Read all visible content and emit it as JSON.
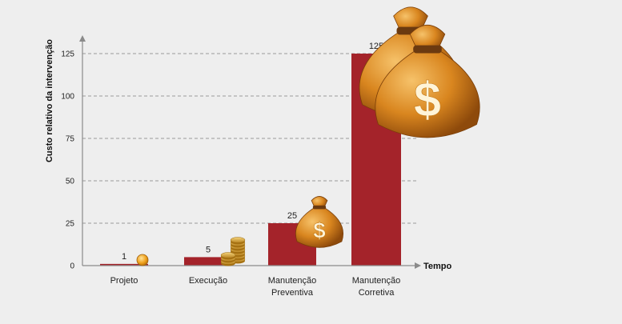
{
  "chart_data": {
    "type": "bar",
    "categories": [
      [
        "Projeto"
      ],
      [
        "Execução"
      ],
      [
        "Manutenção",
        "Preventiva"
      ],
      [
        "Manutenção",
        "Corretiva"
      ]
    ],
    "values": [
      1,
      5,
      25,
      125
    ],
    "ylabel": "Custo relativo da intervenção",
    "xlabel": "Tempo",
    "ylim": [
      0,
      140
    ],
    "yticks": [
      0,
      25,
      50,
      75,
      100,
      125
    ],
    "grid": true,
    "bar_color": "#a4232a",
    "decorations": [
      "coin-icon",
      "coin-stack-icon",
      "money-bag-icon",
      "money-bags-icon"
    ]
  }
}
